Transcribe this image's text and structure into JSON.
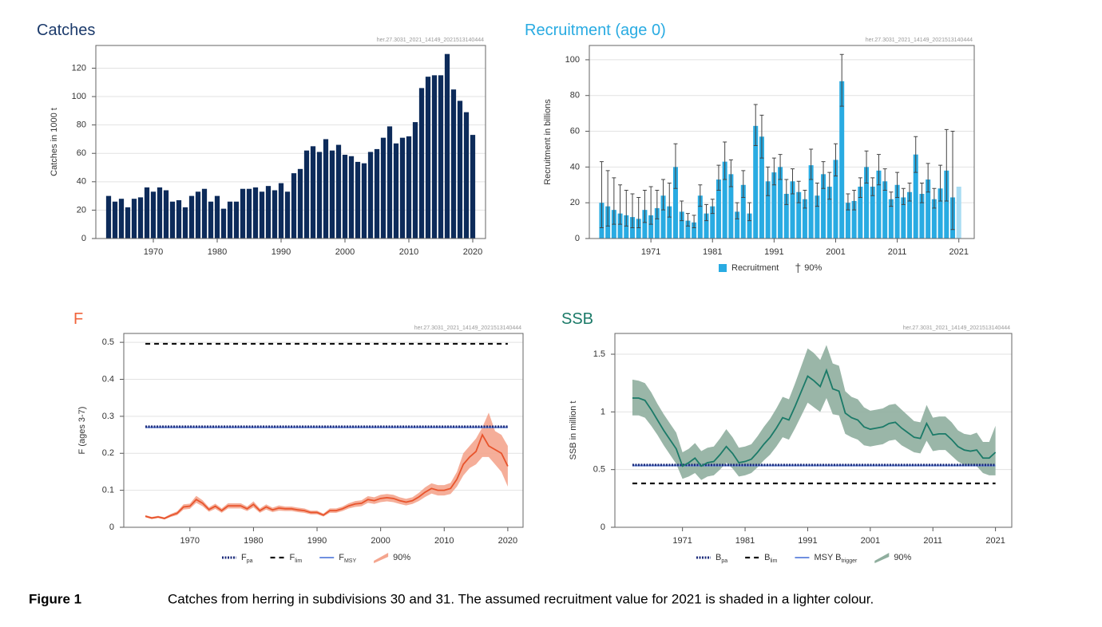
{
  "chart_data": [
    {
      "type": "bar",
      "title": "Catches",
      "title_color": "#1b3a6b",
      "source": "her.27.3031_2021_14149_2021513140444",
      "y_label": "Catches in 1000 t",
      "x": [
        1963,
        1964,
        1965,
        1966,
        1967,
        1968,
        1969,
        1970,
        1971,
        1972,
        1973,
        1974,
        1975,
        1976,
        1977,
        1978,
        1979,
        1980,
        1981,
        1982,
        1983,
        1984,
        1985,
        1986,
        1987,
        1988,
        1989,
        1990,
        1991,
        1992,
        1993,
        1994,
        1995,
        1996,
        1997,
        1998,
        1999,
        2000,
        2001,
        2002,
        2003,
        2004,
        2005,
        2006,
        2007,
        2008,
        2009,
        2010,
        2011,
        2012,
        2013,
        2014,
        2015,
        2016,
        2017,
        2018,
        2019,
        2020
      ],
      "values": [
        30,
        26,
        28,
        22,
        28,
        29,
        36,
        33,
        36,
        34,
        26,
        27,
        22,
        30,
        33,
        35,
        26,
        30,
        21,
        26,
        26,
        35,
        35,
        36,
        33,
        37,
        34,
        39,
        33,
        46,
        49,
        62,
        65,
        61,
        70,
        62,
        66,
        59,
        58,
        54,
        53,
        61,
        63,
        71,
        79,
        67,
        71,
        72,
        82,
        106,
        114,
        115,
        115,
        130,
        105,
        97,
        89,
        73
      ],
      "color": "#0d2b5a",
      "xlim": [
        1961,
        2022
      ],
      "xticks": [
        1970,
        1980,
        1990,
        2000,
        2010,
        2020
      ],
      "ylim": [
        0,
        136
      ],
      "yticks": [
        0,
        20,
        40,
        60,
        80,
        100,
        120
      ],
      "grid": true
    },
    {
      "type": "bar",
      "title": "Recruitment (age 0)",
      "title_color": "#29abe2",
      "source": "her.27.3031_2021_14149_2021513140444",
      "y_label": "Recruitment in billions",
      "name": "Recruitment",
      "error_name": "90%",
      "x": [
        1963,
        1964,
        1965,
        1966,
        1967,
        1968,
        1969,
        1970,
        1971,
        1972,
        1973,
        1974,
        1975,
        1976,
        1977,
        1978,
        1979,
        1980,
        1981,
        1982,
        1983,
        1984,
        1985,
        1986,
        1987,
        1988,
        1989,
        1990,
        1991,
        1992,
        1993,
        1994,
        1995,
        1996,
        1997,
        1998,
        1999,
        2000,
        2001,
        2002,
        2003,
        2004,
        2005,
        2006,
        2007,
        2008,
        2009,
        2010,
        2011,
        2012,
        2013,
        2014,
        2015,
        2016,
        2017,
        2018,
        2019,
        2020,
        2021
      ],
      "values": [
        20,
        18,
        16,
        14,
        13,
        12,
        11,
        16,
        13,
        17,
        24,
        18,
        40,
        15,
        10,
        9,
        24,
        14,
        18,
        33,
        43,
        36,
        15,
        30,
        14,
        63,
        57,
        32,
        37,
        40,
        25,
        32,
        26,
        22,
        41,
        24,
        36,
        29,
        44,
        88,
        20,
        21,
        29,
        40,
        29,
        38,
        32,
        22,
        30,
        23,
        26,
        47,
        25,
        33,
        22,
        28,
        38,
        23,
        29
      ],
      "low": [
        6,
        7,
        8,
        8,
        7,
        6,
        6,
        9,
        8,
        11,
        16,
        12,
        28,
        10,
        7,
        6,
        18,
        10,
        14,
        27,
        33,
        29,
        11,
        23,
        10,
        52,
        45,
        24,
        30,
        33,
        19,
        25,
        20,
        17,
        33,
        18,
        28,
        22,
        35,
        74,
        16,
        16,
        23,
        31,
        24,
        30,
        27,
        18,
        23,
        19,
        21,
        37,
        20,
        26,
        17,
        21,
        21,
        5,
        null
      ],
      "high": [
        43,
        38,
        34,
        30,
        27,
        25,
        23,
        27,
        29,
        27,
        33,
        31,
        53,
        21,
        14,
        13,
        30,
        19,
        22,
        41,
        54,
        44,
        20,
        38,
        20,
        75,
        69,
        40,
        45,
        47,
        33,
        39,
        32,
        27,
        50,
        31,
        43,
        37,
        53,
        103,
        25,
        27,
        34,
        49,
        34,
        47,
        39,
        26,
        37,
        28,
        31,
        57,
        31,
        42,
        28,
        41,
        61,
        60,
        null
      ],
      "color": "#29abe2",
      "colors": [
        "#29abe2",
        "#29abe2",
        "#29abe2",
        "#29abe2",
        "#29abe2",
        "#29abe2",
        "#29abe2",
        "#29abe2",
        "#29abe2",
        "#29abe2",
        "#29abe2",
        "#29abe2",
        "#29abe2",
        "#29abe2",
        "#29abe2",
        "#29abe2",
        "#29abe2",
        "#29abe2",
        "#29abe2",
        "#29abe2",
        "#29abe2",
        "#29abe2",
        "#29abe2",
        "#29abe2",
        "#29abe2",
        "#29abe2",
        "#29abe2",
        "#29abe2",
        "#29abe2",
        "#29abe2",
        "#29abe2",
        "#29abe2",
        "#29abe2",
        "#29abe2",
        "#29abe2",
        "#29abe2",
        "#29abe2",
        "#29abe2",
        "#29abe2",
        "#29abe2",
        "#29abe2",
        "#29abe2",
        "#29abe2",
        "#29abe2",
        "#29abe2",
        "#29abe2",
        "#29abe2",
        "#29abe2",
        "#29abe2",
        "#29abe2",
        "#29abe2",
        "#29abe2",
        "#29abe2",
        "#29abe2",
        "#29abe2",
        "#29abe2",
        "#29abe2",
        "#29abe2",
        "#a8dcf3"
      ],
      "xlim": [
        1961,
        2023.5
      ],
      "xticks": [
        1971,
        1981,
        1991,
        2001,
        2011,
        2021
      ],
      "ylim": [
        0,
        108
      ],
      "yticks": [
        0,
        20,
        40,
        60,
        80,
        100
      ],
      "grid": true
    },
    {
      "type": "line",
      "title": "F",
      "title_color": "#f0643c",
      "source": "her.27.3031_2021_14149_2021513140444",
      "y_label": "F (ages 3-7)",
      "x": [
        1963,
        1964,
        1965,
        1966,
        1967,
        1968,
        1969,
        1970,
        1971,
        1972,
        1973,
        1974,
        1975,
        1976,
        1977,
        1978,
        1979,
        1980,
        1981,
        1982,
        1983,
        1984,
        1985,
        1986,
        1987,
        1988,
        1989,
        1990,
        1991,
        1992,
        1993,
        1994,
        1995,
        1996,
        1997,
        1998,
        1999,
        2000,
        2001,
        2002,
        2003,
        2004,
        2005,
        2006,
        2007,
        2008,
        2009,
        2010,
        2011,
        2012,
        2013,
        2014,
        2015,
        2016,
        2017,
        2018,
        2019,
        2020
      ],
      "values": [
        0.03,
        0.025,
        0.028,
        0.024,
        0.032,
        0.038,
        0.055,
        0.057,
        0.075,
        0.065,
        0.048,
        0.057,
        0.045,
        0.058,
        0.058,
        0.058,
        0.05,
        0.062,
        0.045,
        0.055,
        0.047,
        0.052,
        0.05,
        0.05,
        0.047,
        0.045,
        0.04,
        0.04,
        0.033,
        0.045,
        0.045,
        0.05,
        0.058,
        0.063,
        0.065,
        0.075,
        0.072,
        0.078,
        0.08,
        0.078,
        0.072,
        0.068,
        0.072,
        0.082,
        0.095,
        0.105,
        0.1,
        0.1,
        0.105,
        0.13,
        0.17,
        0.19,
        0.205,
        0.25,
        0.22,
        0.21,
        0.2,
        0.165
      ],
      "low": [
        0.027,
        0.022,
        0.025,
        0.021,
        0.028,
        0.033,
        0.048,
        0.05,
        0.066,
        0.057,
        0.042,
        0.05,
        0.039,
        0.051,
        0.051,
        0.051,
        0.044,
        0.054,
        0.039,
        0.048,
        0.041,
        0.045,
        0.044,
        0.044,
        0.041,
        0.039,
        0.035,
        0.035,
        0.029,
        0.039,
        0.039,
        0.044,
        0.051,
        0.055,
        0.057,
        0.066,
        0.063,
        0.068,
        0.07,
        0.068,
        0.063,
        0.059,
        0.063,
        0.071,
        0.082,
        0.091,
        0.086,
        0.086,
        0.09,
        0.11,
        0.14,
        0.16,
        0.17,
        0.19,
        0.19,
        0.17,
        0.15,
        0.11
      ],
      "high": [
        0.033,
        0.028,
        0.031,
        0.027,
        0.036,
        0.043,
        0.062,
        0.064,
        0.085,
        0.073,
        0.054,
        0.064,
        0.051,
        0.065,
        0.065,
        0.065,
        0.056,
        0.07,
        0.051,
        0.062,
        0.053,
        0.059,
        0.056,
        0.056,
        0.053,
        0.051,
        0.045,
        0.045,
        0.037,
        0.051,
        0.051,
        0.056,
        0.065,
        0.071,
        0.073,
        0.084,
        0.081,
        0.088,
        0.09,
        0.088,
        0.081,
        0.077,
        0.081,
        0.093,
        0.108,
        0.119,
        0.114,
        0.114,
        0.12,
        0.15,
        0.2,
        0.22,
        0.24,
        0.27,
        0.31,
        0.26,
        0.25,
        0.22
      ],
      "color": "#e8542c",
      "band_color": "#f4a58e",
      "band_name": "90%",
      "reference_lines": [
        {
          "name": "F",
          "subscript": "pa",
          "value": 0.272,
          "style": "dotted",
          "color": "#1a2a7a"
        },
        {
          "name": "F",
          "subscript": "lim",
          "value": 0.496,
          "style": "dashed",
          "color": "#111111"
        },
        {
          "name": "F",
          "subscript": "MSY",
          "value": 0.27,
          "style": "solid",
          "color": "#6f8fe0"
        }
      ],
      "xlim": [
        1959.6,
        2022.4
      ],
      "xticks": [
        1970,
        1980,
        1990,
        2000,
        2010,
        2020
      ],
      "ylim": [
        0,
        0.524
      ],
      "yticks": [
        0,
        0.1,
        0.2,
        0.3,
        0.4,
        0.5
      ],
      "grid": true
    },
    {
      "type": "line",
      "title": "SSB",
      "title_color": "#1b7a68",
      "source": "her.27.3031_2021_14149_2021513140444",
      "y_label": "SSB in million t",
      "x": [
        1963,
        1964,
        1965,
        1966,
        1967,
        1968,
        1969,
        1970,
        1971,
        1972,
        1973,
        1974,
        1975,
        1976,
        1977,
        1978,
        1979,
        1980,
        1981,
        1982,
        1983,
        1984,
        1985,
        1986,
        1987,
        1988,
        1989,
        1990,
        1991,
        1992,
        1993,
        1994,
        1995,
        1996,
        1997,
        1998,
        1999,
        2000,
        2001,
        2002,
        2003,
        2004,
        2005,
        2006,
        2007,
        2008,
        2009,
        2010,
        2011,
        2012,
        2013,
        2014,
        2015,
        2016,
        2017,
        2018,
        2019,
        2020,
        2021
      ],
      "values": [
        1.12,
        1.12,
        1.1,
        1.02,
        0.93,
        0.84,
        0.76,
        0.68,
        0.53,
        0.56,
        0.6,
        0.53,
        0.56,
        0.57,
        0.63,
        0.7,
        0.64,
        0.56,
        0.57,
        0.59,
        0.65,
        0.72,
        0.78,
        0.86,
        0.95,
        0.93,
        1.05,
        1.18,
        1.31,
        1.27,
        1.22,
        1.36,
        1.2,
        1.18,
        0.99,
        0.95,
        0.93,
        0.87,
        0.85,
        0.86,
        0.87,
        0.9,
        0.91,
        0.86,
        0.82,
        0.78,
        0.77,
        0.9,
        0.8,
        0.81,
        0.81,
        0.76,
        0.7,
        0.67,
        0.66,
        0.67,
        0.6,
        0.6,
        0.65
      ],
      "low": [
        0.97,
        0.97,
        0.95,
        0.88,
        0.8,
        0.71,
        0.63,
        0.55,
        0.42,
        0.44,
        0.47,
        0.41,
        0.44,
        0.45,
        0.5,
        0.56,
        0.51,
        0.44,
        0.45,
        0.47,
        0.52,
        0.58,
        0.63,
        0.7,
        0.78,
        0.76,
        0.86,
        0.97,
        1.08,
        1.04,
        1,
        1.12,
        0.98,
        0.97,
        0.81,
        0.78,
        0.76,
        0.71,
        0.7,
        0.71,
        0.72,
        0.75,
        0.76,
        0.71,
        0.68,
        0.65,
        0.64,
        0.75,
        0.66,
        0.67,
        0.67,
        0.62,
        0.57,
        0.54,
        0.53,
        0.53,
        0.47,
        0.45,
        0.45
      ],
      "high": [
        1.28,
        1.27,
        1.25,
        1.17,
        1.07,
        0.98,
        0.9,
        0.82,
        0.65,
        0.68,
        0.73,
        0.66,
        0.69,
        0.7,
        0.77,
        0.85,
        0.78,
        0.69,
        0.7,
        0.72,
        0.79,
        0.87,
        0.94,
        1.03,
        1.13,
        1.11,
        1.25,
        1.4,
        1.55,
        1.51,
        1.45,
        1.58,
        1.42,
        1.4,
        1.18,
        1.13,
        1.11,
        1.04,
        1.01,
        1.02,
        1.03,
        1.06,
        1.07,
        1.02,
        0.97,
        0.92,
        0.91,
        1.06,
        0.95,
        0.96,
        0.96,
        0.91,
        0.84,
        0.81,
        0.8,
        0.82,
        0.74,
        0.74,
        0.88
      ],
      "color": "#1b7a68",
      "band_color": "#8fae9e",
      "band_name": "90%",
      "reference_lines": [
        {
          "name": "B",
          "subscript": "pa",
          "value": 0.54,
          "style": "dotted",
          "color": "#1a2a7a"
        },
        {
          "name": "B",
          "subscript": "lim",
          "value": 0.38,
          "style": "dashed",
          "color": "#111111"
        },
        {
          "name": "MSY B",
          "subscript": "trigger",
          "value": 0.535,
          "style": "solid",
          "color": "#6f8fe0"
        }
      ],
      "xlim": [
        1960.2,
        2023.6
      ],
      "xticks": [
        1971,
        1981,
        1991,
        2001,
        2011,
        2021
      ],
      "ylim": [
        0,
        1.68
      ],
      "yticks": [
        0,
        0.5,
        1,
        1.5
      ],
      "grid": true
    }
  ],
  "caption": {
    "label": "Figure 1",
    "text": "Catches from herring in subdivisions 30 and 31. The assumed recruitment value for 2021 is shaded in a lighter colour."
  }
}
